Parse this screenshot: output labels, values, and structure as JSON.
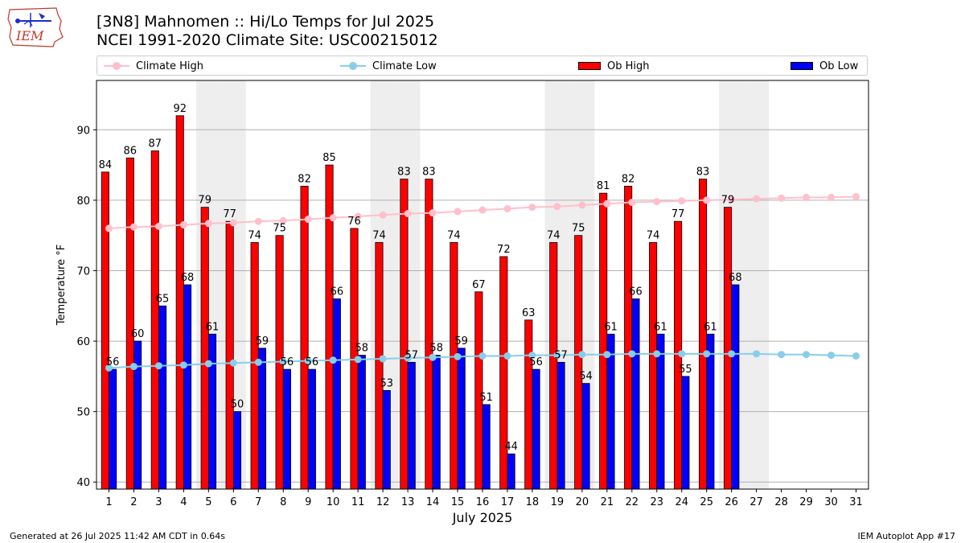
{
  "header": {
    "logo_text": "IEM",
    "title_line1": "[3N8] Mahnomen :: Hi/Lo Temps for Jul 2025",
    "title_line2": "NCEI 1991-2020 Climate Site: USC00215012"
  },
  "legend": [
    {
      "label": "Climate High",
      "kind": "line",
      "color": "#ffc0cb"
    },
    {
      "label": "Climate Low",
      "kind": "line",
      "color": "#87ceeb"
    },
    {
      "label": "Ob High",
      "kind": "bar",
      "color": "#ff0000"
    },
    {
      "label": "Ob Low",
      "kind": "bar",
      "color": "#0000ff"
    }
  ],
  "footer": {
    "left": "Generated at 26 Jul 2025 11:42 AM CDT in 0.64s",
    "right": "IEM Autoplot App #17"
  },
  "chart_data": {
    "type": "bar",
    "title": "[3N8] Mahnomen :: Hi/Lo Temps for Jul 2025",
    "subtitle": "NCEI 1991-2020 Climate Site: USC00215012",
    "xlabel": "July 2025",
    "ylabel": "Temperature °F",
    "ylim": [
      39,
      97
    ],
    "yticks": [
      40,
      50,
      60,
      70,
      80,
      90
    ],
    "grid": "y",
    "legend_position": "top",
    "categories": [
      1,
      2,
      3,
      4,
      5,
      6,
      7,
      8,
      9,
      10,
      11,
      12,
      13,
      14,
      15,
      16,
      17,
      18,
      19,
      20,
      21,
      22,
      23,
      24,
      25,
      26,
      27,
      28,
      29,
      30,
      31
    ],
    "weekend_days": [
      5,
      6,
      12,
      13,
      19,
      20,
      26,
      27
    ],
    "series": [
      {
        "name": "Ob High",
        "kind": "bar",
        "color": "#ff0000",
        "values": [
          84,
          86,
          87,
          92,
          79,
          77,
          74,
          75,
          82,
          85,
          76,
          74,
          83,
          83,
          74,
          67,
          72,
          63,
          74,
          75,
          81,
          82,
          74,
          77,
          83,
          79,
          null,
          null,
          null,
          null,
          null
        ]
      },
      {
        "name": "Ob Low",
        "kind": "bar",
        "color": "#0000ff",
        "values": [
          56,
          60,
          65,
          68,
          61,
          50,
          59,
          56,
          56,
          66,
          58,
          53,
          57,
          58,
          59,
          51,
          44,
          56,
          57,
          54,
          61,
          66,
          61,
          55,
          61,
          68,
          null,
          null,
          null,
          null,
          null
        ]
      },
      {
        "name": "Climate High",
        "kind": "line",
        "color": "#ffc0cb",
        "values": [
          76.0,
          76.2,
          76.3,
          76.5,
          76.7,
          76.8,
          77.0,
          77.1,
          77.3,
          77.5,
          77.7,
          77.9,
          78.1,
          78.2,
          78.4,
          78.6,
          78.8,
          79.0,
          79.1,
          79.3,
          79.5,
          79.7,
          79.8,
          79.9,
          80.0,
          80.1,
          80.2,
          80.3,
          80.4,
          80.4,
          80.5
        ]
      },
      {
        "name": "Climate Low",
        "kind": "line",
        "color": "#87ceeb",
        "values": [
          56.2,
          56.4,
          56.5,
          56.6,
          56.8,
          56.9,
          57.0,
          57.1,
          57.2,
          57.3,
          57.4,
          57.5,
          57.6,
          57.7,
          57.8,
          57.9,
          57.9,
          58.0,
          58.0,
          58.1,
          58.1,
          58.2,
          58.2,
          58.2,
          58.2,
          58.2,
          58.2,
          58.1,
          58.1,
          58.0,
          57.9
        ]
      }
    ]
  }
}
